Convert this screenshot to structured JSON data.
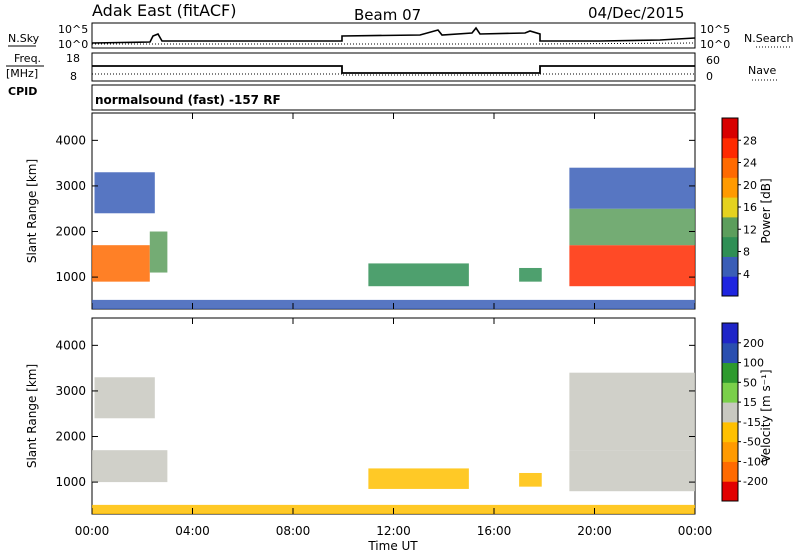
{
  "header": {
    "station": "Adak East (fitACF)",
    "beam": "Beam 07",
    "date": "04/Dec/2015"
  },
  "panels": {
    "noise": {
      "left_label": "N.Sky",
      "right_label": "N.Search",
      "left_ticks": [
        "10^5",
        "10^0"
      ],
      "right_ticks": [
        "10^5",
        "10^0"
      ]
    },
    "freq": {
      "left_label_1": "Freq.",
      "left_label_2": "[MHz]",
      "right_label": "Nave",
      "left_ticks": [
        "18",
        "8"
      ],
      "right_ticks": [
        "60",
        "0"
      ],
      "cpid_label": "CPID"
    },
    "cpid": {
      "text": "normalsound (fast) -157 RF"
    }
  },
  "colors": {
    "power": [
      "#1f25e0",
      "#3a5eb7",
      "#2f8f55",
      "#5c9e5c",
      "#e5d21f",
      "#ff9a00",
      "#ff6a00",
      "#ff2a00",
      "#d80000"
    ],
    "velocity": [
      "#e20000",
      "#ff6a00",
      "#ff9a00",
      "#ffc000",
      "#c8c8c0",
      "#7ad04a",
      "#2e9a2e",
      "#2a4fb0",
      "#1f25c8"
    ]
  },
  "chart_data": [
    {
      "type": "heatmap",
      "name": "power",
      "xlabel": "",
      "ylabel": "Slant Range [km]",
      "ylim": [
        300,
        4600
      ],
      "y_ticks": [
        "4000",
        "3000",
        "2000",
        "1000"
      ],
      "y_tick_values": [
        4000,
        3000,
        2000,
        1000
      ],
      "colorbar": {
        "label": "Power [dB]",
        "ticks": [
          "28",
          "24",
          "20",
          "16",
          "12",
          "8",
          "4"
        ],
        "range": [
          0,
          32
        ]
      },
      "regions": [
        {
          "t0": 0.0,
          "t1": 2.3,
          "r0": 900,
          "r1": 1700,
          "value": 24
        },
        {
          "t0": 2.3,
          "t1": 3.0,
          "r0": 1100,
          "r1": 2000,
          "value": 14
        },
        {
          "t0": 0.1,
          "t1": 2.5,
          "r0": 2400,
          "r1": 3300,
          "value": 6
        },
        {
          "t0": 11.0,
          "t1": 15.0,
          "r0": 800,
          "r1": 1300,
          "value": 10
        },
        {
          "t0": 17.0,
          "t1": 17.9,
          "r0": 900,
          "r1": 1200,
          "value": 8
        },
        {
          "t0": 19.0,
          "t1": 24.0,
          "r0": 800,
          "r1": 1700,
          "value": 26
        },
        {
          "t0": 19.0,
          "t1": 24.0,
          "r0": 1700,
          "r1": 2500,
          "value": 14
        },
        {
          "t0": 19.0,
          "t1": 24.0,
          "r0": 2500,
          "r1": 3400,
          "value": 6
        },
        {
          "t0": 0.0,
          "t1": 24.0,
          "r0": 300,
          "r1": 500,
          "value": 4
        }
      ]
    },
    {
      "type": "heatmap",
      "name": "velocity",
      "xlabel": "Time UT",
      "ylabel": "Slant Range [km]",
      "ylim": [
        300,
        4600
      ],
      "y_ticks": [
        "4000",
        "3000",
        "2000",
        "1000"
      ],
      "y_tick_values": [
        4000,
        3000,
        2000,
        1000
      ],
      "x_ticks": [
        "00:00",
        "04:00",
        "08:00",
        "12:00",
        "16:00",
        "20:00",
        "00:00"
      ],
      "x_tick_values": [
        0,
        4,
        8,
        12,
        16,
        20,
        24
      ],
      "xlim": [
        0,
        24
      ],
      "colorbar": {
        "label": "Velocity [m s⁻¹]",
        "ticks": [
          "200",
          "100",
          "50",
          "15",
          "-15",
          "-50",
          "-100",
          "-200"
        ],
        "range": [
          -250,
          250
        ]
      },
      "regions": [
        {
          "t0": 0.0,
          "t1": 3.0,
          "r0": 1000,
          "r1": 1700,
          "value": 0
        },
        {
          "t0": 0.1,
          "t1": 2.5,
          "r0": 2400,
          "r1": 3300,
          "value": 10
        },
        {
          "t0": 11.0,
          "t1": 15.0,
          "r0": 850,
          "r1": 1300,
          "value": -30
        },
        {
          "t0": 17.0,
          "t1": 17.9,
          "r0": 900,
          "r1": 1200,
          "value": -70
        },
        {
          "t0": 19.0,
          "t1": 24.0,
          "r0": 800,
          "r1": 1700,
          "value": 0
        },
        {
          "t0": 19.0,
          "t1": 24.0,
          "r0": 1700,
          "r1": 3400,
          "value": 5
        },
        {
          "t0": 0.0,
          "t1": 24.0,
          "r0": 300,
          "r1": 500,
          "value": -40
        }
      ]
    }
  ]
}
